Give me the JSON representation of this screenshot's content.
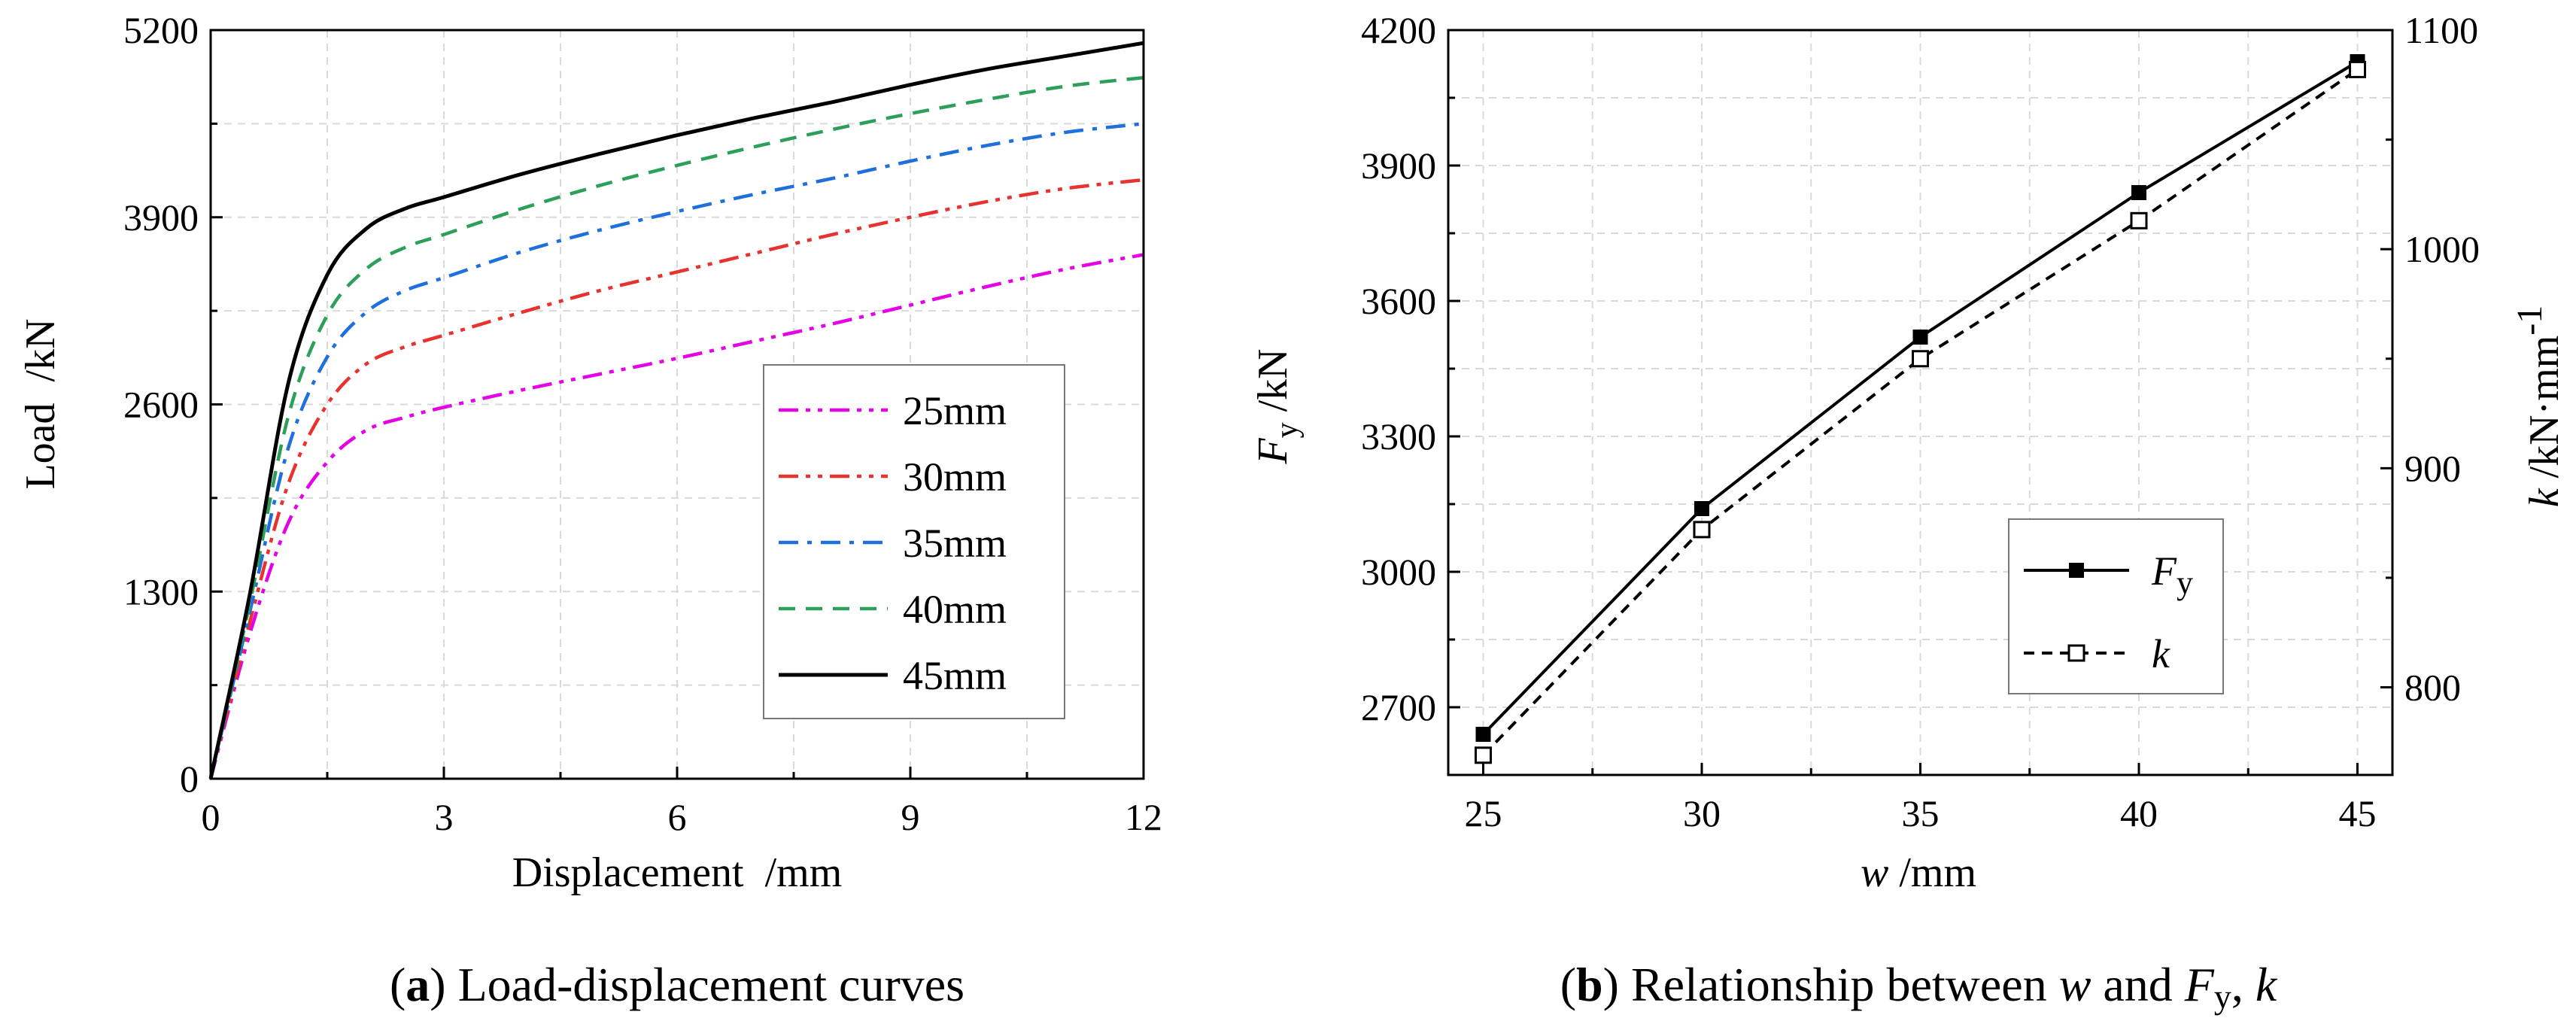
{
  "chart_data": [
    {
      "type": "line",
      "xlabel": "Displacement  /mm",
      "ylabel": "Load  /kN",
      "xlim": [
        0,
        12
      ],
      "ylim": [
        0,
        5200
      ],
      "xticks": [
        "0",
        "3",
        "6",
        "9",
        "12"
      ],
      "yticks": [
        "0",
        "1300",
        "2600",
        "3900",
        "5200"
      ],
      "grid": true,
      "legend_position": "bottom-right",
      "x": [
        0,
        0.5,
        1,
        1.5,
        2,
        2.5,
        3,
        4,
        5,
        6,
        7,
        8,
        9,
        10,
        11,
        12
      ],
      "series": [
        {
          "name": "25mm",
          "color": "#e600e6",
          "dash": "dashdotdot",
          "values": [
            0,
            1000,
            1780,
            2200,
            2420,
            2510,
            2580,
            2700,
            2810,
            2920,
            3040,
            3160,
            3290,
            3420,
            3540,
            3640
          ]
        },
        {
          "name": "30mm",
          "color": "#e8322e",
          "dash": "dashdotdot",
          "values": [
            0,
            1080,
            2050,
            2600,
            2880,
            3000,
            3080,
            3240,
            3390,
            3520,
            3650,
            3780,
            3900,
            4010,
            4100,
            4160
          ]
        },
        {
          "name": "35mm",
          "color": "#1f6fdc",
          "dash": "dashdot",
          "values": [
            0,
            1150,
            2300,
            2930,
            3240,
            3390,
            3480,
            3660,
            3810,
            3940,
            4060,
            4170,
            4290,
            4400,
            4490,
            4550
          ]
        },
        {
          "name": "40mm",
          "color": "#2ca05a",
          "dash": "dash",
          "values": [
            0,
            1210,
            2520,
            3220,
            3540,
            3690,
            3780,
            3960,
            4120,
            4260,
            4390,
            4510,
            4620,
            4720,
            4810,
            4870
          ]
        },
        {
          "name": "45mm",
          "color": "#000000",
          "dash": "solid",
          "values": [
            0,
            1270,
            2750,
            3500,
            3820,
            3960,
            4040,
            4200,
            4340,
            4470,
            4590,
            4700,
            4820,
            4930,
            5020,
            5110
          ]
        }
      ]
    },
    {
      "type": "line",
      "xlabel": "w /mm",
      "ylabel": "F_y /kN",
      "y2label": "k /kN·mm^-1",
      "x": [
        25,
        30,
        35,
        40,
        45
      ],
      "xlim": [
        24.2,
        45.8
      ],
      "ylim": [
        2550,
        4200
      ],
      "y2lim": [
        760,
        1100
      ],
      "xticks": [
        "25",
        "30",
        "35",
        "40",
        "45"
      ],
      "yticks": [
        "2700",
        "3000",
        "3300",
        "3600",
        "3900",
        "4200"
      ],
      "y2ticks": [
        "800",
        "900",
        "1000",
        "1100"
      ],
      "grid": true,
      "legend_position": "middle-right",
      "series": [
        {
          "name": "F_y",
          "axis": "left",
          "marker": "filled-square",
          "dash": "solid",
          "color": "#000000",
          "values": [
            2640,
            3140,
            3520,
            3840,
            4130
          ]
        },
        {
          "name": "k",
          "axis": "right",
          "marker": "open-square",
          "dash": "dash",
          "color": "#000000",
          "values": [
            769,
            872,
            950,
            1013,
            1082
          ]
        }
      ]
    }
  ],
  "panel_a": {
    "xlabel": "Displacement  /mm",
    "ylabel": "Load  /kN",
    "caption_letter": "a",
    "caption_text": "Load-displacement curves"
  },
  "panel_b": {
    "xlabel_italic": "w",
    "xlabel_rest": " /mm",
    "ylabel_italic": "F",
    "ylabel_sub": "y",
    "ylabel_rest": " /kN",
    "y2label_italic": "k",
    "y2label_rest": " /kN·mm",
    "y2label_sup": "-1",
    "legend_fy_italic": "F",
    "legend_fy_sub": "y",
    "legend_k": "k",
    "caption_letter": "b",
    "caption_pre": " Relationship between ",
    "caption_w": "w",
    "caption_and": " and ",
    "caption_F": "F",
    "caption_sub": "y",
    "caption_sep": ", ",
    "caption_k": "k"
  }
}
